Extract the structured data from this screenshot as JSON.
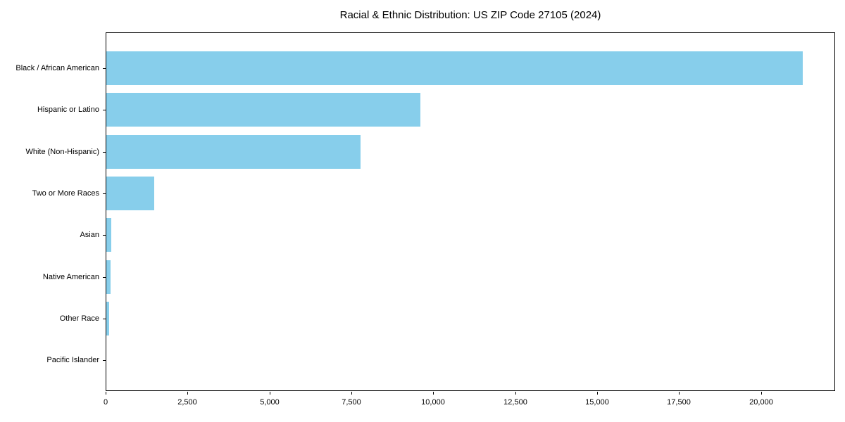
{
  "chart_data": {
    "type": "bar",
    "orientation": "horizontal",
    "title": "Racial & Ethnic Distribution: US ZIP Code 27105 (2024)",
    "categories": [
      "Black / African American",
      "Hispanic or Latino",
      "White (Non-Hispanic)",
      "Two or More Races",
      "Asian",
      "Native American",
      "Other Race",
      "Pacific Islander"
    ],
    "values": [
      21250,
      9590,
      7760,
      1465,
      150,
      130,
      85,
      10
    ],
    "xlabel": "",
    "ylabel": "",
    "xlim": [
      0,
      22265
    ],
    "x_ticks": [
      0,
      2500,
      5000,
      7500,
      10000,
      12500,
      15000,
      17500,
      20000
    ],
    "x_tick_labels": [
      "0",
      "2,500",
      "5,000",
      "7,500",
      "10,000",
      "12,500",
      "15,000",
      "17,500",
      "20,000"
    ],
    "grid": false,
    "legend": "none",
    "bar_color": "#87CEEB",
    "background_color": "#ffffff",
    "spine_color": "#000000"
  }
}
